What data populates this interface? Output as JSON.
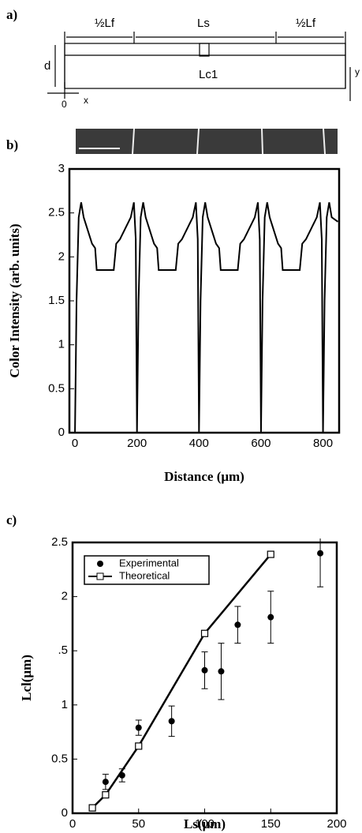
{
  "diagram": {
    "panel_label": "a)",
    "half_left": "½Lf",
    "segment": "Ls",
    "half_right": "½Lf",
    "depth": "d",
    "crack": "Lc1",
    "origin": "0",
    "x_axis": "x",
    "y_axis": "y"
  },
  "chart_data": [
    {
      "type": "line",
      "panel_label": "b)",
      "ylabel": "Color Intensity (arb. units)",
      "xlabel": "Distance (μm)",
      "xlim": [
        -18,
        852
      ],
      "xticks": [
        0,
        200,
        400,
        600,
        800
      ],
      "ylim": [
        0,
        3
      ],
      "yticks": [
        0,
        0.5,
        1,
        1.5,
        2,
        2.5,
        3
      ],
      "color": "#000000",
      "x": [
        0,
        5,
        12,
        20,
        28,
        55,
        65,
        70,
        125,
        133,
        145,
        180,
        190,
        196,
        200,
        205,
        212,
        220,
        228,
        255,
        265,
        270,
        325,
        333,
        345,
        380,
        390,
        396,
        400,
        405,
        412,
        420,
        428,
        455,
        465,
        470,
        525,
        533,
        545,
        580,
        590,
        596,
        600,
        605,
        612,
        620,
        628,
        655,
        665,
        670,
        725,
        733,
        745,
        780,
        790,
        796,
        800,
        805,
        812,
        820,
        828,
        848
      ],
      "values": [
        0,
        1.5,
        2.45,
        2.62,
        2.45,
        2.15,
        2.1,
        1.85,
        1.85,
        2.15,
        2.2,
        2.45,
        2.62,
        2.2,
        0,
        1.5,
        2.45,
        2.62,
        2.45,
        2.15,
        2.1,
        1.85,
        1.85,
        2.15,
        2.2,
        2.45,
        2.62,
        2.2,
        0,
        1.5,
        2.45,
        2.62,
        2.45,
        2.15,
        2.1,
        1.85,
        1.85,
        2.15,
        2.2,
        2.45,
        2.62,
        2.2,
        0,
        1.5,
        2.45,
        2.62,
        2.45,
        2.15,
        2.1,
        1.85,
        1.85,
        2.15,
        2.2,
        2.45,
        2.62,
        2.2,
        0,
        1.5,
        2.45,
        2.62,
        2.45,
        2.4
      ]
    },
    {
      "type": "scatter",
      "panel_label": "c)",
      "ylabel": "Lcl(μm)",
      "xlabel": "Ls(μm)",
      "xlim": [
        0,
        200
      ],
      "xticks": [
        0,
        50,
        100,
        150,
        200
      ],
      "ylim": [
        0,
        2.5
      ],
      "yticks": [
        0,
        0.5,
        1,
        {
          "value": 1.5,
          "label": ".5"
        },
        2,
        2.5
      ],
      "legend": "top-left",
      "series": [
        {
          "name": "Experimental",
          "color": "#000000",
          "marker": "circle",
          "x": [
            25,
            37.5,
            50,
            75,
            100,
            112.5,
            125,
            150,
            187.5
          ],
          "values": [
            0.29,
            0.35,
            0.79,
            0.85,
            1.32,
            1.31,
            1.74,
            1.81,
            2.4
          ],
          "errors": [
            0.07,
            0.06,
            0.07,
            0.14,
            0.17,
            0.26,
            0.17,
            0.24,
            0.31
          ]
        },
        {
          "name": "Theoretical",
          "color": "#000000",
          "marker": "square",
          "line": true,
          "x": [
            15,
            25,
            50,
            100,
            150
          ],
          "values": [
            0.05,
            0.17,
            0.62,
            1.66,
            2.39
          ]
        }
      ]
    }
  ]
}
